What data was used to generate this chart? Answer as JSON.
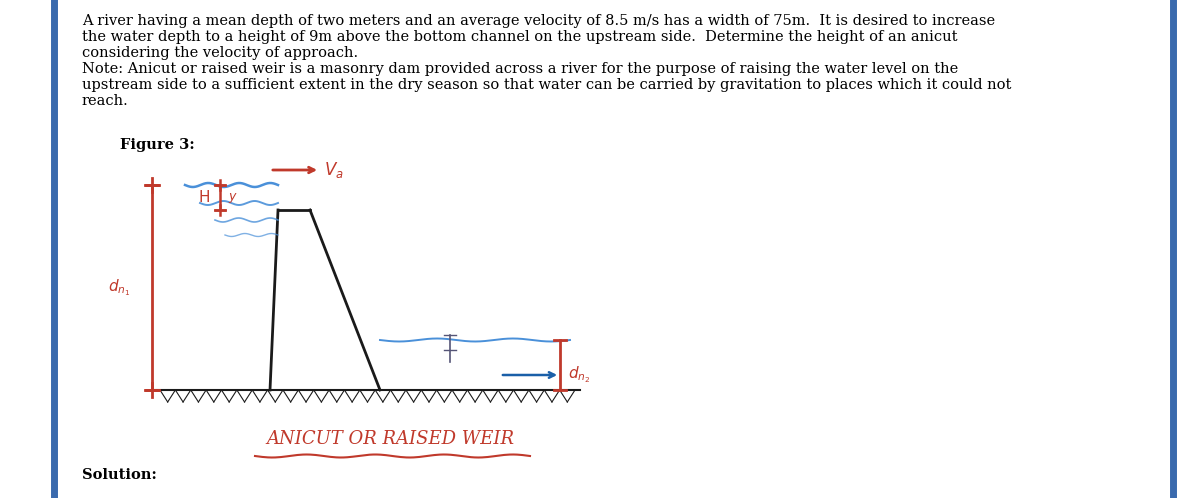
{
  "background_color": "#ffffff",
  "border_color": "#3a6aad",
  "line1": "A river having a mean depth of two meters and an average velocity of 8.5 m/s has a width of 75m.  It is desired to increase",
  "line2": "the water depth to a height of 9m above the bottom channel on the upstream side.  Determine the height of an anicut",
  "line3": "considering the velocity of approach.",
  "line4": "Note: Anicut or raised weir is a masonry dam provided across a river for the purpose of raising the water level on the",
  "line5": "upstream side to a sufficient extent in the dry season so that water can be carried by gravitation to places which it could not",
  "line6": "reach.",
  "figure_label": "Figure 3:",
  "solution_label": "Solution:",
  "caption": "ANICUT OR RAISED WEIR",
  "red": "#c0392b",
  "blue_water": "#4a90d9",
  "dark_blue_arrow": "#1a5fa8",
  "black": "#1a1a1a",
  "border_blue": "#3a6aad",
  "font_size_body": 10.5,
  "font_size_label": 10.5,
  "font_size_caption": 13,
  "font_size_dim": 11
}
